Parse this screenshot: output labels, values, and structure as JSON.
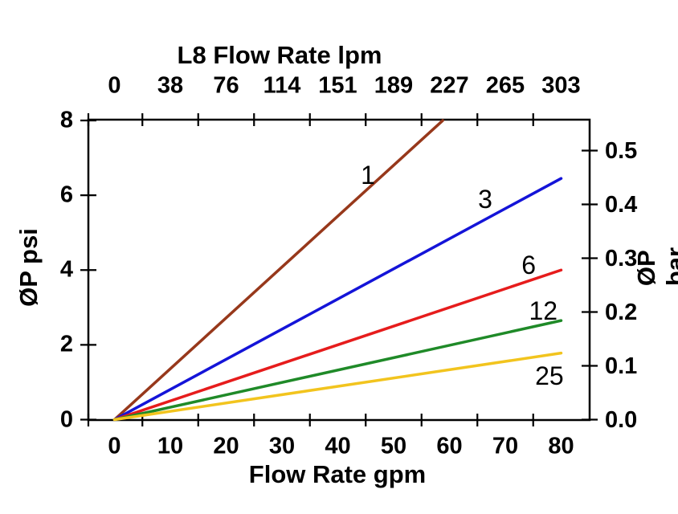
{
  "chart_data": {
    "type": "line",
    "title_top": "L8 Flow Rate lpm",
    "xlabel_bottom": "Flow Rate gpm",
    "ylabel_left": "ØP psi",
    "ylabel_right": "ØP bar",
    "axes": {
      "x_bottom": {
        "unit": "gpm",
        "ticks": [
          "0",
          "10",
          "20",
          "30",
          "40",
          "50",
          "60",
          "70",
          "80"
        ],
        "tick_values": [
          0,
          10,
          20,
          30,
          40,
          50,
          60,
          70,
          80
        ],
        "range": [
          0,
          85
        ],
        "tick_marks_between_labels": true
      },
      "x_top": {
        "unit": "lpm",
        "ticks": [
          "0",
          "38",
          "76",
          "114",
          "151",
          "189",
          "227",
          "265",
          "303"
        ],
        "note": "same positions as gpm labels"
      },
      "y_left": {
        "unit": "psi",
        "ticks": [
          "0",
          "2",
          "4",
          "6",
          "8"
        ],
        "tick_values": [
          0,
          2,
          4,
          6,
          8
        ],
        "range": [
          0,
          8
        ]
      },
      "y_right": {
        "unit": "bar",
        "ticks": [
          "0.0",
          "0.1",
          "0.2",
          "0.3",
          "0.4",
          "0.5"
        ],
        "tick_values": [
          0,
          0.1,
          0.2,
          0.3,
          0.4,
          0.5
        ]
      }
    },
    "grid": false,
    "legend": "inline labels on curves",
    "series": [
      {
        "name": "1",
        "color": "#97381B",
        "points_gpm_psi": [
          [
            0,
            0
          ],
          [
            58.8,
            8.0
          ]
        ],
        "label_at_gpm_psi": [
          45.4,
          6.54
        ]
      },
      {
        "name": "3",
        "color": "#1414D8",
        "points_gpm_psi": [
          [
            0,
            0
          ],
          [
            80,
            6.45
          ]
        ],
        "label_at_gpm_psi": [
          66.4,
          5.9
        ]
      },
      {
        "name": "6",
        "color": "#E61C1C",
        "points_gpm_psi": [
          [
            0,
            0
          ],
          [
            80,
            4.0
          ]
        ],
        "label_at_gpm_psi": [
          74.2,
          4.13
        ]
      },
      {
        "name": "12",
        "color": "#1F8A28",
        "points_gpm_psi": [
          [
            0,
            0
          ],
          [
            80,
            2.65
          ]
        ],
        "label_at_gpm_psi": [
          76.8,
          2.91
        ]
      },
      {
        "name": "25",
        "color": "#F2C41E",
        "points_gpm_psi": [
          [
            0,
            0
          ],
          [
            80,
            1.78
          ]
        ],
        "label_at_gpm_psi": [
          77.9,
          1.17
        ]
      }
    ],
    "colors": {
      "axis": "#000000",
      "text": "#000000",
      "background": "#ffffff"
    }
  }
}
